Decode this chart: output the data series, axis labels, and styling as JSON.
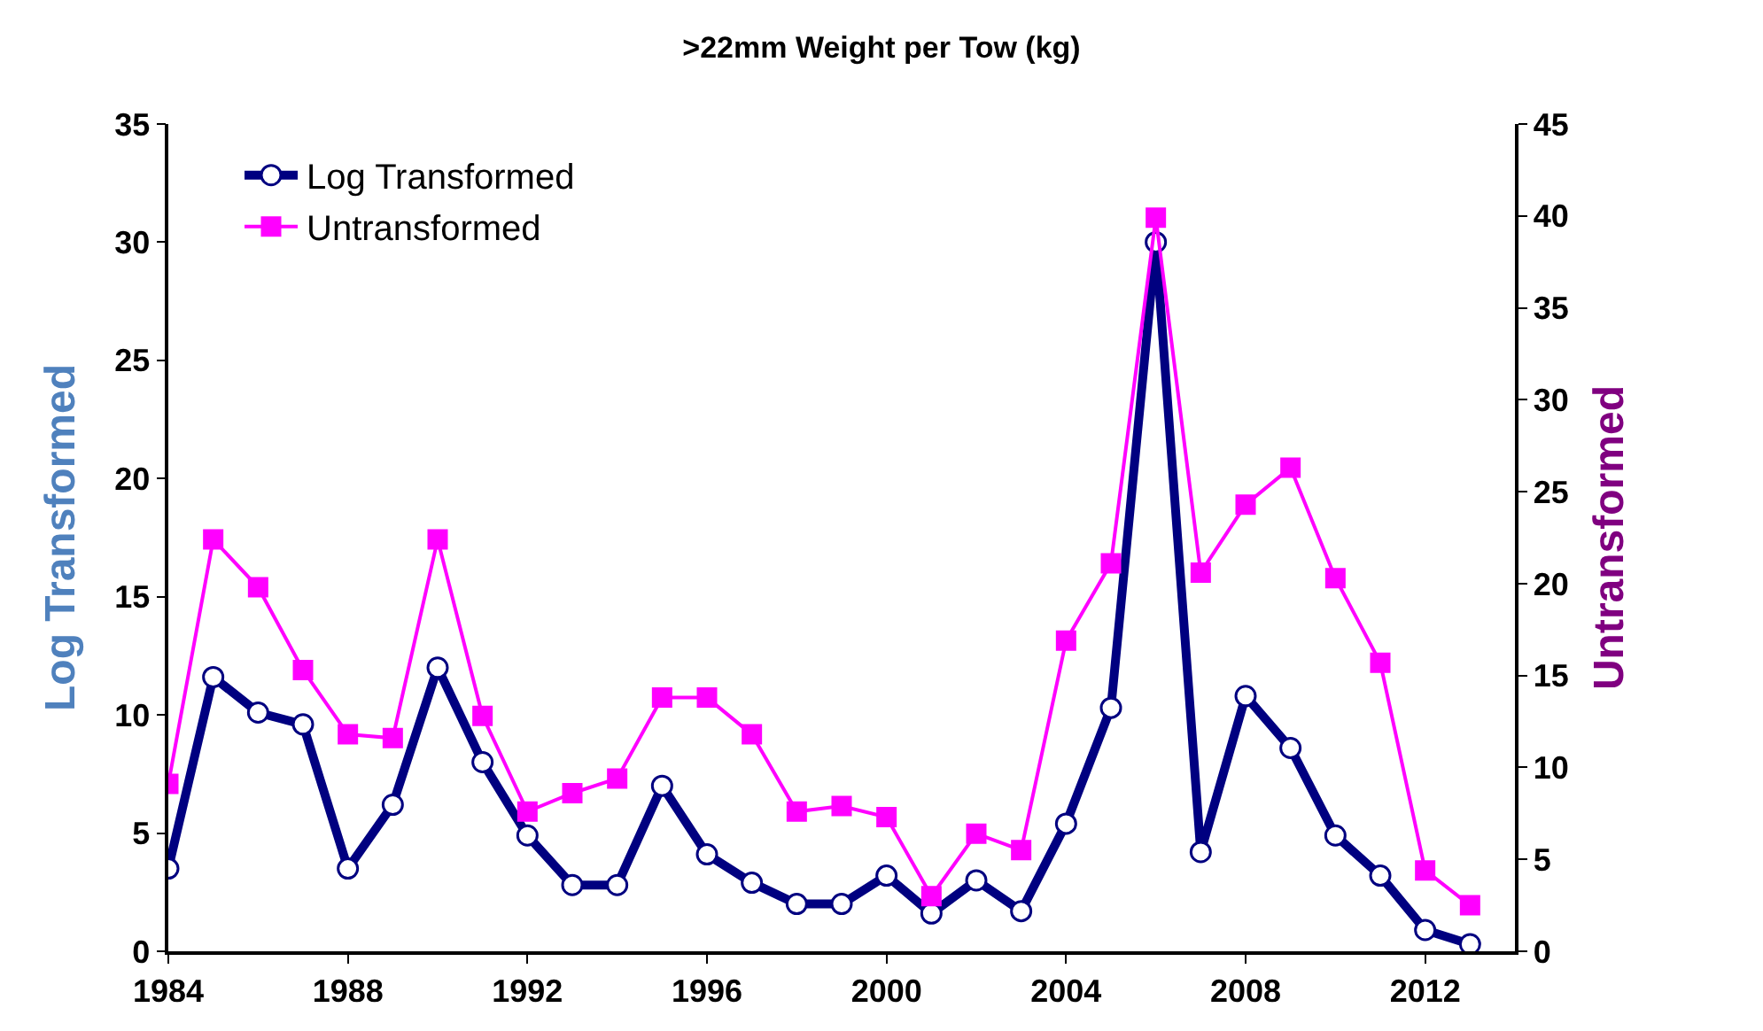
{
  "chart_data": {
    "type": "line",
    "title": ">22mm Weight per Tow (kg)",
    "ylabel": "Log Transformed",
    "y2label": "Untransformed",
    "x": [
      1984,
      1985,
      1986,
      1987,
      1988,
      1989,
      1990,
      1991,
      1992,
      1993,
      1994,
      1995,
      1996,
      1997,
      1998,
      1999,
      2000,
      2001,
      2002,
      2003,
      2004,
      2005,
      2006,
      2007,
      2008,
      2009,
      2010,
      2011,
      2012,
      2013
    ],
    "series": [
      {
        "name": "Log Transformed",
        "color": "#000080",
        "marker": "circle",
        "values": [
          3.5,
          11.6,
          10.1,
          9.6,
          3.5,
          6.2,
          12.0,
          8.0,
          4.9,
          2.8,
          2.8,
          7.0,
          4.1,
          2.9,
          2.0,
          2.0,
          3.2,
          1.6,
          3.0,
          1.7,
          5.4,
          10.3,
          30.0,
          4.2,
          10.8,
          8.6,
          4.9,
          3.2,
          0.9,
          0.3
        ]
      },
      {
        "name": "Untransformed",
        "color": "#ff00ff",
        "marker": "square",
        "axis": "y2",
        "values": [
          9.1,
          22.4,
          19.8,
          15.3,
          11.8,
          11.6,
          22.4,
          12.8,
          7.6,
          8.6,
          9.4,
          13.8,
          13.8,
          11.8,
          7.6,
          7.9,
          7.3,
          3.0,
          6.4,
          5.5,
          16.9,
          21.1,
          39.9,
          20.6,
          24.3,
          26.3,
          20.3,
          15.7,
          4.4,
          2.5
        ]
      }
    ],
    "xlim": [
      1984,
      2014
    ],
    "xticks": [
      1984,
      1988,
      1992,
      1996,
      2000,
      2004,
      2008,
      2012
    ],
    "ylim": [
      0,
      35
    ],
    "yticks": [
      0,
      5,
      10,
      15,
      20,
      25,
      30,
      35
    ],
    "y2lim": [
      0,
      45
    ],
    "y2ticks": [
      0,
      5,
      10,
      15,
      20,
      25,
      30,
      35,
      40,
      45
    ],
    "legend": "top left"
  }
}
